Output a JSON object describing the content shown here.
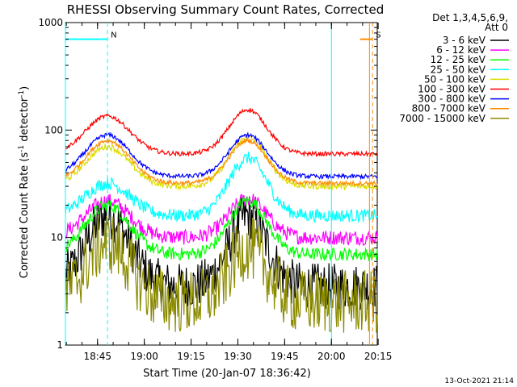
{
  "chart_data": {
    "type": "line",
    "title": "RHESSI Observing Summary Count Rates, Corrected",
    "xlabel": "Start Time (20-Jan-07 18:36:42)",
    "ylabel_prefix": "Corrected Count Rate (s",
    "ylabel_mid": " detector",
    "ylabel_suffix": ")",
    "ylabel_exp": "-1",
    "ylog": true,
    "ylim": [
      1,
      1000
    ],
    "xlim_minutes": [
      -2,
      98
    ],
    "x_ticks": [
      {
        "label": "18:45",
        "min": 8.3
      },
      {
        "label": "19:00",
        "min": 23.3
      },
      {
        "label": "19:15",
        "min": 38.3
      },
      {
        "label": "19:30",
        "min": 53.3
      },
      {
        "label": "19:45",
        "min": 68.3
      },
      {
        "label": "20:00",
        "min": 83.3
      },
      {
        "label": "20:15",
        "min": 98.3
      }
    ],
    "y_ticks": [
      {
        "label": "1",
        "value": 1
      },
      {
        "label": "10",
        "value": 10
      },
      {
        "label": "100",
        "value": 100
      },
      {
        "label": "1000",
        "value": 1000
      }
    ],
    "legend_header": [
      "Det 1,3,4,5,6,9,",
      "Att 0"
    ],
    "series": [
      {
        "name": "3 - 6 keV",
        "color": "#000000",
        "peak1": 16,
        "peak2": 16,
        "base": 3.5,
        "noise": 0.22
      },
      {
        "name": "6 - 12 keV",
        "color": "#ff00ff",
        "peak1": 22,
        "peak2": 23,
        "base": 10,
        "noise": 0.07
      },
      {
        "name": "12 - 25 keV",
        "color": "#00ff00",
        "peak1": 20,
        "peak2": 22,
        "base": 7,
        "noise": 0.06
      },
      {
        "name": "25 - 50 keV",
        "color": "#00ffff",
        "peak1": 32,
        "peak2": 55,
        "base": 16,
        "noise": 0.06
      },
      {
        "name": "50 - 100 keV",
        "color": "#dddd00",
        "peak1": 70,
        "peak2": 85,
        "base": 30,
        "noise": 0.03
      },
      {
        "name": "100 - 300 keV",
        "color": "#ff0000",
        "peak1": 135,
        "peak2": 155,
        "base": 60,
        "noise": 0.02
      },
      {
        "name": "300 - 800 keV",
        "color": "#0000ff",
        "peak1": 90,
        "peak2": 90,
        "base": 37,
        "noise": 0.02
      },
      {
        "name": "800 - 7000 keV",
        "color": "#ff8c00",
        "peak1": 80,
        "peak2": 80,
        "base": 32,
        "noise": 0.02
      },
      {
        "name": "7000 - 15000 keV",
        "color": "#8b8b00",
        "peak1": 9,
        "peak2": 8,
        "base": 2.5,
        "noise": 0.3
      }
    ],
    "peaks_minutes": [
      11.5,
      56.5
    ],
    "markers": [
      {
        "label": "N",
        "color": "#00ffff",
        "start": -2,
        "end": 11.5,
        "line_style": "dashed-right"
      },
      {
        "label": "S",
        "color": "#ff8c00",
        "start": 92.5,
        "end": 96.5,
        "line_style": "dashed-right"
      }
    ],
    "extra_vlines_minutes": [
      {
        "min": -2,
        "color": "#00ffff"
      },
      {
        "min": 83.3,
        "color": "#00ffff"
      }
    ],
    "footer_date": "13-Oct-2021 21:14"
  }
}
